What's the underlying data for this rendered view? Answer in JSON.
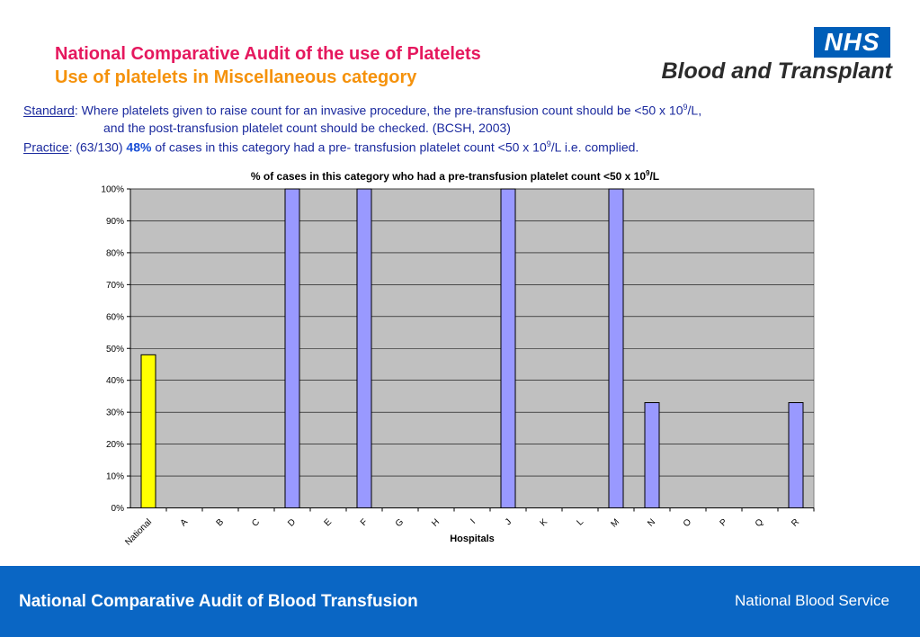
{
  "header": {
    "title_line1": "National Comparative Audit of the use of Platelets",
    "title_line2": "Use of platelets in Miscellaneous category"
  },
  "logo": {
    "badge": "NHS",
    "text": "Blood and Transplant"
  },
  "standard": {
    "label": "Standard",
    "line1": ": Where platelets given to raise count for an invasive procedure, the pre-transfusion count should be <50 x 10",
    "sup": "9",
    "line1_end": "/L,",
    "line2": "and the post-transfusion platelet count should be checked. (BCSH, 2003)"
  },
  "practice": {
    "label": "Practice",
    "prefix": ":  (63/130) ",
    "highlight": "48%",
    "text": " of cases in this category had a pre- transfusion platelet count <50 x 10",
    "sup": "9",
    "text_end": "/L i.e. complied."
  },
  "chart_data": {
    "type": "bar",
    "title": "% of cases in this category who had a pre-transfusion platelet count <50 x 10",
    "title_sup": "9",
    "title_end": "/L",
    "xlabel": "Hospitals",
    "ylabel": "",
    "categories": [
      "National",
      "A",
      "B",
      "C",
      "D",
      "E",
      "F",
      "G",
      "H",
      "I",
      "J",
      "K",
      "L",
      "M",
      "N",
      "O",
      "P",
      "Q",
      "R"
    ],
    "values": [
      48,
      0,
      0,
      0,
      100,
      0,
      100,
      0,
      0,
      0,
      100,
      0,
      0,
      100,
      33,
      0,
      0,
      0,
      33
    ],
    "ylim": [
      0,
      100
    ],
    "yticks": [
      "0%",
      "10%",
      "20%",
      "30%",
      "40%",
      "50%",
      "60%",
      "70%",
      "80%",
      "90%",
      "100%"
    ],
    "grid": true,
    "colors": {
      "national": "#ffff00",
      "hospital": "#9999ff",
      "plot_bg": "#c0c0c0",
      "outline": "#000000"
    }
  },
  "footer": {
    "left": "National Comparative Audit of Blood Transfusion",
    "right": "National Blood Service"
  }
}
